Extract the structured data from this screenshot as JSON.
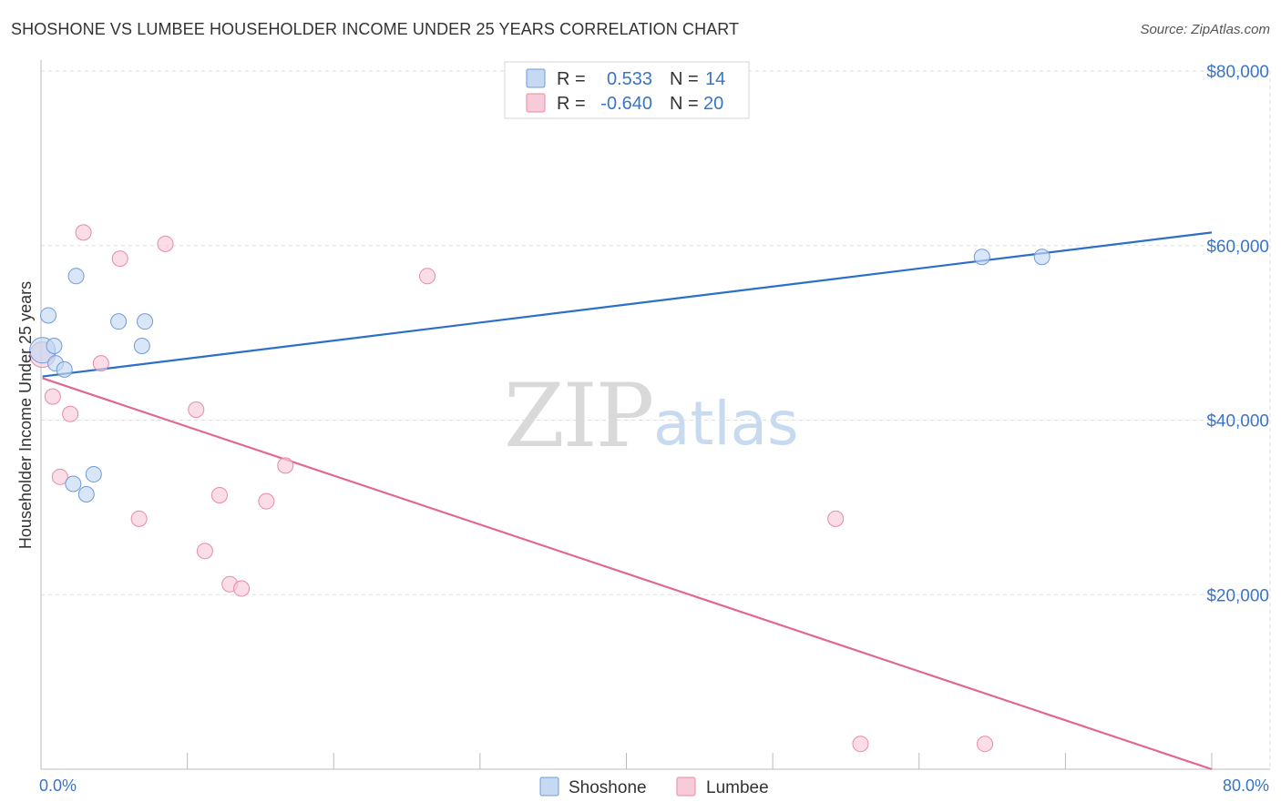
{
  "header": {
    "title": "SHOSHONE VS LUMBEE HOUSEHOLDER INCOME UNDER 25 YEARS CORRELATION CHART",
    "source": "Source: ZipAtlas.com"
  },
  "watermark": {
    "zip": "ZIP",
    "atlas": "atlas"
  },
  "legend": {
    "rows": [
      {
        "r_label": "R =",
        "r_value": "0.533",
        "n_label": "N =",
        "n_value": "14"
      },
      {
        "r_label": "R =",
        "r_value": "-0.640",
        "n_label": "N =",
        "n_value": "20"
      }
    ]
  },
  "bottom_legend": {
    "items": [
      "Shoshone",
      "Lumbee"
    ]
  },
  "colors": {
    "shoshone_fill": "#c5d9f3",
    "shoshone_stroke": "#6e9bd8",
    "shoshone_line": "#2b6fcb",
    "lumbee_fill": "#f7cbd8",
    "lumbee_stroke": "#e88aa8",
    "lumbee_line": "#e06794",
    "tick_label": "#3a74c5",
    "grid": "#dddddd"
  },
  "chart_data": {
    "type": "scatter",
    "title": "SHOSHONE VS LUMBEE HOUSEHOLDER INCOME UNDER 25 YEARS CORRELATION CHART",
    "ylabel": "Householder Income Under 25 years",
    "xlabel": "",
    "xlim": [
      0,
      80
    ],
    "ylim": [
      0,
      80000
    ],
    "x_tick_labels": [
      "0.0%",
      "80.0%"
    ],
    "y_tick_labels": [
      "$20,000",
      "$40,000",
      "$60,000",
      "$80,000"
    ],
    "y_ticks": [
      20000,
      40000,
      60000,
      80000
    ],
    "grid": true,
    "legend_position": "top-center",
    "series": [
      {
        "name": "Shoshone",
        "r": 0.533,
        "n": 14,
        "x": [
          0.1,
          0.5,
          0.9,
          1.0,
          1.6,
          2.2,
          2.4,
          3.1,
          3.6,
          5.3,
          6.9,
          7.1,
          64.3,
          68.4
        ],
        "y": [
          48000,
          52000,
          48500,
          46500,
          45800,
          32700,
          56500,
          31500,
          33800,
          51300,
          48500,
          51300,
          58700,
          58700
        ],
        "trend": {
          "x": [
            0.1,
            80
          ],
          "y": [
            45000,
            61500
          ]
        }
      },
      {
        "name": "Lumbee",
        "r": -0.64,
        "n": 20,
        "x": [
          0.1,
          0.8,
          1.3,
          2.0,
          2.9,
          4.1,
          5.4,
          6.7,
          8.5,
          10.6,
          11.2,
          12.2,
          12.9,
          13.7,
          15.4,
          16.7,
          26.4,
          54.3,
          56.0,
          64.5
        ],
        "y": [
          47500,
          42700,
          33500,
          40700,
          61500,
          46500,
          58500,
          28700,
          60200,
          41200,
          25000,
          31400,
          21200,
          20700,
          30700,
          34800,
          56500,
          28700,
          2900,
          2900
        ],
        "trend": {
          "x": [
            0.1,
            80
          ],
          "y": [
            44800,
            0
          ]
        }
      }
    ]
  }
}
